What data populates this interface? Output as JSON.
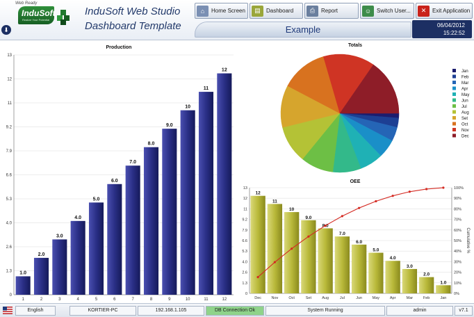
{
  "header": {
    "logo": {
      "tag": "Web Ready",
      "name": "InduSoft",
      "slogan": "Realize Your Potential"
    },
    "title_line1": "InduSoft Web Studio",
    "title_line2": "Dashboard Template",
    "subtitle": "Example",
    "date": "06/04/2012",
    "time": "15:22:52",
    "buttons": {
      "home": "Home Screen",
      "dashboard": "Dashboard",
      "report": "Report",
      "switch_user": "Switch User...",
      "exit": "Exit Application"
    }
  },
  "production": {
    "title": "Production",
    "chart_data": {
      "type": "bar",
      "categories": [
        "1",
        "2",
        "3",
        "4",
        "5",
        "6",
        "7",
        "8",
        "9",
        "10",
        "11",
        "12"
      ],
      "values": [
        1.0,
        2.0,
        3.0,
        4.0,
        5.0,
        6.0,
        7.0,
        8.0,
        9.0,
        10,
        11,
        12
      ],
      "value_labels": [
        "1.0",
        "2.0",
        "3.0",
        "4.0",
        "5.0",
        "6.0",
        "7.0",
        "8.0",
        "9.0",
        "10",
        "11",
        "12"
      ],
      "yticks": [
        "0",
        "1.3",
        "2.6",
        "4.0",
        "5.3",
        "6.6",
        "7.9",
        "9.2",
        "11",
        "12",
        "13"
      ],
      "ylim": [
        0,
        13
      ],
      "color": "#2a2f86"
    }
  },
  "totals": {
    "title": "Totals",
    "chart_data": {
      "type": "pie",
      "labels": [
        "Jan",
        "Feb",
        "Mar",
        "Apr",
        "May",
        "Jun",
        "Jul",
        "Aug",
        "Set",
        "Oct",
        "Nov",
        "Dec"
      ],
      "values": [
        1,
        2,
        3,
        4,
        5,
        6,
        7,
        8,
        9,
        10,
        11,
        12
      ],
      "colors": [
        "#1c1d6e",
        "#1d3f93",
        "#2565b6",
        "#1a8fc8",
        "#1fb1b5",
        "#33b98a",
        "#6dbf45",
        "#b4c236",
        "#d6a52d",
        "#d8721f",
        "#cf3424",
        "#8e1d28"
      ],
      "legend_position": "right"
    }
  },
  "oee": {
    "title": "OEE",
    "y2label": "Cumulative %",
    "chart_data": {
      "type": "bar",
      "categories": [
        "Dec",
        "Nov",
        "Oct",
        "Set",
        "Aug",
        "Jul",
        "Jun",
        "May",
        "Apr",
        "Mar",
        "Feb",
        "Jan"
      ],
      "values": [
        12,
        11,
        10,
        9.0,
        8.0,
        7.0,
        6.0,
        5.0,
        4.0,
        3.0,
        2.0,
        1.0
      ],
      "value_labels": [
        "12",
        "11",
        "10",
        "9.0",
        "8.0",
        "7.0",
        "6.0",
        "5.0",
        "4.0",
        "3.0",
        "2.0",
        "1.0"
      ],
      "yticks": [
        "0",
        "1.3",
        "2.6",
        "4.0",
        "5.3",
        "6.6",
        "7.9",
        "9.2",
        "11",
        "12",
        "13"
      ],
      "ylim": [
        0,
        13
      ],
      "y2ticks": [
        "0%",
        "10%",
        "20%",
        "30%",
        "40%",
        "50%",
        "60%",
        "70%",
        "80%",
        "90%",
        "100%"
      ],
      "cumulative_percent": [
        15.4,
        29.5,
        42.3,
        53.8,
        64.1,
        73.1,
        80.8,
        87.2,
        92.3,
        96.2,
        98.7,
        100
      ],
      "bar_color": "#b9b93a",
      "line_color": "#d42a22"
    }
  },
  "statusbar": {
    "language": "English",
    "computer": "KORTIER-PC",
    "ip": "192.168.1.105",
    "db": "DB Connection Ok",
    "system": "System Running",
    "user": "admin",
    "version": "v7.1"
  }
}
